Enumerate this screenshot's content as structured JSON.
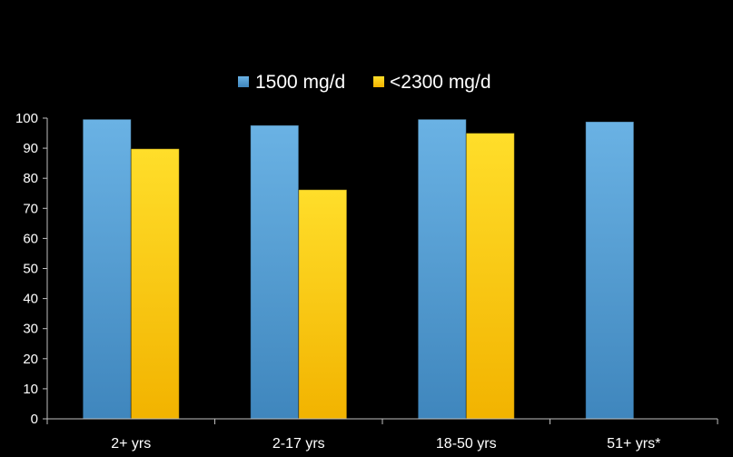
{
  "chart_data": {
    "type": "bar",
    "categories": [
      "2+ yrs",
      "2-17 yrs",
      "18-50 yrs",
      "51+ yrs*"
    ],
    "series": [
      {
        "name": "1500 mg/d",
        "values": [
          99.6,
          97.6,
          99.6,
          98.8
        ],
        "color": "#5aa5d8"
      },
      {
        "name": "<2300 mg/d",
        "values": [
          89.8,
          76.2,
          95.0,
          null
        ],
        "color": "#ffd21a"
      }
    ],
    "ylim": [
      0,
      100
    ],
    "yticks": [
      0,
      10,
      20,
      30,
      40,
      50,
      60,
      70,
      80,
      90,
      100
    ],
    "legend_position": "top",
    "grid": false
  }
}
